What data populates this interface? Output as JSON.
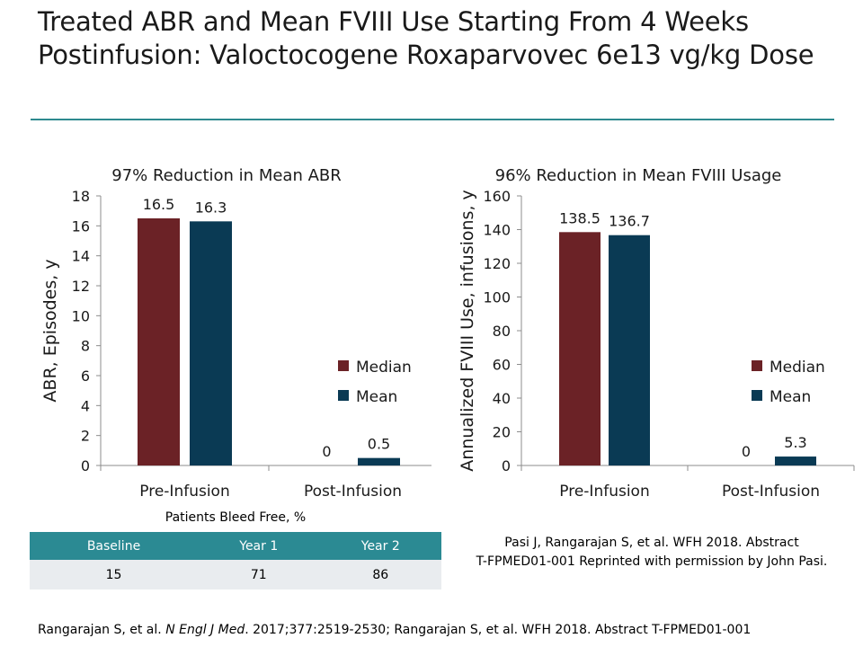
{
  "header": {
    "title": "Treated ABR and Mean FVIII Use Starting From 4 Weeks Postinfusion: Valoctocogene Roxaparvovec 6e13 vg/kg Dose"
  },
  "colors": {
    "median": "#6b2226",
    "mean": "#0a3a54",
    "accent": "#2e8a8f",
    "table_header": "#2b8a93",
    "table_row": "#e9ecef"
  },
  "chart_data": [
    {
      "type": "bar",
      "title": "97% Reduction in Mean ABR",
      "ylabel": "ABR, Episodes, y",
      "xlabel": "",
      "categories": [
        "Pre-Infusion",
        "Post-Infusion"
      ],
      "ylim": [
        0,
        18
      ],
      "yticks": [
        0,
        2,
        4,
        6,
        8,
        10,
        12,
        14,
        16,
        18
      ],
      "series": [
        {
          "name": "Median",
          "values": [
            16.5,
            0
          ],
          "labels": [
            "16.5",
            "0"
          ]
        },
        {
          "name": "Mean",
          "values": [
            16.3,
            0.5
          ],
          "labels": [
            "16.3",
            "0.5"
          ]
        }
      ],
      "legend": "right"
    },
    {
      "type": "bar",
      "title": "96% Reduction in Mean FVIII Usage",
      "ylabel": "Annualized FVIII Use, infusions, y",
      "xlabel": "",
      "categories": [
        "Pre-Infusion",
        "Post-Infusion"
      ],
      "ylim": [
        0,
        160
      ],
      "yticks": [
        0,
        20,
        40,
        60,
        80,
        100,
        120,
        140,
        160
      ],
      "series": [
        {
          "name": "Median",
          "values": [
            138.5,
            0
          ],
          "labels": [
            "138.5",
            "0"
          ]
        },
        {
          "name": "Mean",
          "values": [
            136.7,
            5.3
          ],
          "labels": [
            "136.7",
            "5.3"
          ]
        }
      ],
      "legend": "right"
    }
  ],
  "bleed_table": {
    "caption": "Patients Bleed Free, %",
    "headers": [
      "Baseline",
      "Year 1",
      "Year 2"
    ],
    "values": [
      "15",
      "71",
      "86"
    ]
  },
  "credit": {
    "line1": "Pasi J, Rangarajan S, et al. WFH 2018. Abstract",
    "line2": "T-FPMED01-001 Reprinted with permission by John Pasi."
  },
  "footnote": {
    "prefix": "Rangarajan S, et al.",
    "journal": "N Engl J Med",
    "suffix": ". 2017;377:2519-2530; Rangarajan S, et al. WFH 2018. Abstract T-FPMED01-001"
  }
}
